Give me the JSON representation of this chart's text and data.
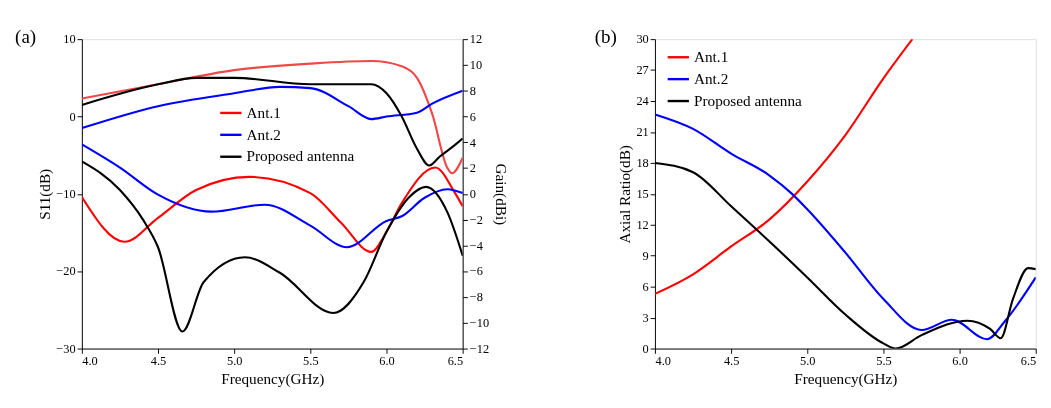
{
  "chart_data": [
    {
      "type": "line",
      "annotations": [
        "(a)"
      ],
      "xlabel": "Frequency(GHz)",
      "ylabel": "S11(dB)",
      "y2label": "Gain(dBi)",
      "xlim": [
        4.0,
        6.5
      ],
      "xticks": [
        {
          "value": 4,
          "label": "4.0"
        },
        4.5,
        {
          "value": 5,
          "label": "5.0"
        },
        5.5,
        {
          "value": 6,
          "label": "6.0"
        },
        6.5
      ],
      "ylim": [
        -30,
        10
      ],
      "yticks": [
        -30,
        -20,
        -10,
        0,
        10
      ],
      "y2lim": [
        -12,
        12
      ],
      "y2ticks": [
        -12,
        -10,
        -8,
        -6,
        -4,
        -2,
        0,
        2,
        4,
        6,
        8,
        10,
        12
      ],
      "grid": false,
      "legend": "center",
      "line_style": "solid",
      "marker": "none",
      "series": [
        {
          "name": "Ant.1",
          "color": "#ff0000",
          "x": [
            4.0,
            4.28,
            4.5,
            4.75,
            5.1,
            5.5,
            5.7,
            5.9,
            6.0,
            6.1,
            6.32,
            6.45,
            6.5
          ],
          "values": [
            -10.4,
            -16.2,
            -13.1,
            -9.5,
            -7.8,
            -9.9,
            -13.7,
            -17.5,
            -14.9,
            -11.2,
            -6.6,
            -9.9,
            -11.6
          ]
        },
        {
          "name": "Ant.2",
          "color": "#0000ff",
          "x": [
            4.0,
            4.25,
            4.5,
            4.85,
            5.2,
            5.5,
            5.74,
            6.0,
            6.1,
            6.25,
            6.4,
            6.5
          ],
          "values": [
            -3.6,
            -6.6,
            -10.1,
            -12.3,
            -11.4,
            -14.1,
            -16.9,
            -13.5,
            -12.9,
            -10.5,
            -9.4,
            -9.9
          ]
        },
        {
          "name": "Proposed antenna",
          "color": "#000000",
          "x": [
            4.0,
            4.25,
            4.4,
            4.5,
            4.66,
            4.8,
            5.07,
            5.3,
            5.65,
            5.85,
            6.0,
            6.15,
            6.26,
            6.4,
            6.5
          ],
          "values": [
            -5.8,
            -9.5,
            -13.3,
            -16.9,
            -27.8,
            -21.4,
            -18.2,
            -20.2,
            -25.4,
            -21.4,
            -14.9,
            -10.4,
            -9.1,
            -12.4,
            -18.0
          ]
        },
        {
          "color": "#f04848",
          "axis": "y2",
          "x": [
            4.0,
            4.5,
            5.0,
            5.5,
            5.9,
            6.1,
            6.2,
            6.3,
            6.4,
            6.43,
            6.5
          ],
          "values": [
            7.4,
            8.5,
            9.6,
            10.1,
            10.3,
            9.9,
            9.0,
            6.2,
            2.0,
            1.6,
            2.8
          ]
        },
        {
          "color": "#0000ff",
          "axis": "y2",
          "x": [
            4.0,
            4.5,
            5.0,
            5.3,
            5.5,
            5.75,
            5.9,
            6.0,
            6.2,
            6.3,
            6.5
          ],
          "values": [
            5.1,
            6.8,
            7.8,
            8.3,
            8.2,
            6.8,
            5.8,
            6.0,
            6.3,
            7.0,
            8.0
          ]
        },
        {
          "color": "#000000",
          "axis": "y2",
          "x": [
            4.0,
            4.5,
            4.75,
            5.0,
            5.5,
            5.75,
            5.9,
            6.0,
            6.1,
            6.2,
            6.28,
            6.35,
            6.45,
            6.5
          ],
          "values": [
            6.9,
            8.5,
            9.0,
            9.0,
            8.5,
            8.5,
            8.5,
            7.8,
            6.0,
            3.5,
            2.2,
            2.9,
            3.8,
            4.3
          ]
        }
      ]
    },
    {
      "type": "line",
      "annotations": [
        "(b)"
      ],
      "xlabel": "Frequency(GHz)",
      "ylabel": "Axial Ratio(dB)",
      "xlim": [
        4.0,
        6.5
      ],
      "xticks": [
        {
          "value": 4,
          "label": "4.0"
        },
        4.5,
        {
          "value": 5,
          "label": "5.0"
        },
        5.5,
        {
          "value": 6,
          "label": "6.0"
        },
        6.5
      ],
      "ylim": [
        0,
        30
      ],
      "yticks": [
        0,
        3,
        6,
        9,
        12,
        15,
        18,
        21,
        24,
        27,
        30
      ],
      "grid": false,
      "legend": "top left",
      "line_style": "solid",
      "marker": "none",
      "series": [
        {
          "name": "Ant.1",
          "color": "#ff0000",
          "x": [
            4.0,
            4.25,
            4.5,
            4.75,
            5.0,
            5.25,
            5.5,
            5.69
          ],
          "values": [
            5.3,
            7.2,
            9.9,
            12.5,
            16.2,
            20.7,
            26.2,
            30.0
          ]
        },
        {
          "name": "Ant.2",
          "color": "#0000ff",
          "x": [
            4.0,
            4.25,
            4.5,
            4.75,
            4.9,
            5.0,
            5.25,
            5.5,
            5.75,
            5.95,
            6.18,
            6.3,
            6.5
          ],
          "values": [
            22.7,
            21.3,
            18.9,
            16.8,
            15.0,
            13.5,
            9.3,
            4.8,
            1.8,
            2.8,
            0.9,
            2.7,
            6.9
          ]
        },
        {
          "name": "Proposed antenna",
          "color": "#000000",
          "x": [
            4.0,
            4.25,
            4.5,
            4.75,
            5.0,
            5.25,
            5.5,
            5.58,
            5.75,
            6.05,
            6.2,
            6.27,
            6.35,
            6.45,
            6.5
          ],
          "values": [
            18.0,
            17.1,
            13.8,
            10.4,
            6.9,
            3.3,
            0.5,
            0.0,
            1.3,
            2.7,
            1.9,
            1.0,
            4.8,
            7.8,
            7.7
          ]
        }
      ]
    }
  ]
}
